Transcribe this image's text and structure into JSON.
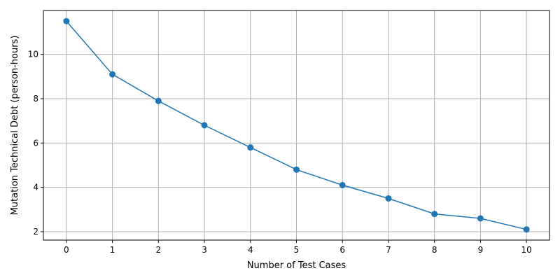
{
  "chart_data": {
    "type": "line",
    "x": [
      0,
      1,
      2,
      3,
      4,
      5,
      6,
      7,
      8,
      9,
      10
    ],
    "series": [
      {
        "values": [
          11.5,
          9.1,
          7.9,
          6.8,
          5.8,
          4.8,
          4.1,
          3.5,
          2.8,
          2.6,
          2.1
        ],
        "color": "#1f77b4",
        "marker": "circle"
      }
    ],
    "xlabel": "Number of Test Cases",
    "ylabel": "Mutation Technical Debt (person-hours)",
    "xlim": [
      -0.5,
      10.5
    ],
    "ylim": [
      1.62,
      11.98
    ],
    "xticks": [
      0,
      1,
      2,
      3,
      4,
      5,
      6,
      7,
      8,
      9,
      10
    ],
    "yticks": [
      2,
      4,
      6,
      8,
      10
    ],
    "grid": true,
    "legend": "none"
  }
}
